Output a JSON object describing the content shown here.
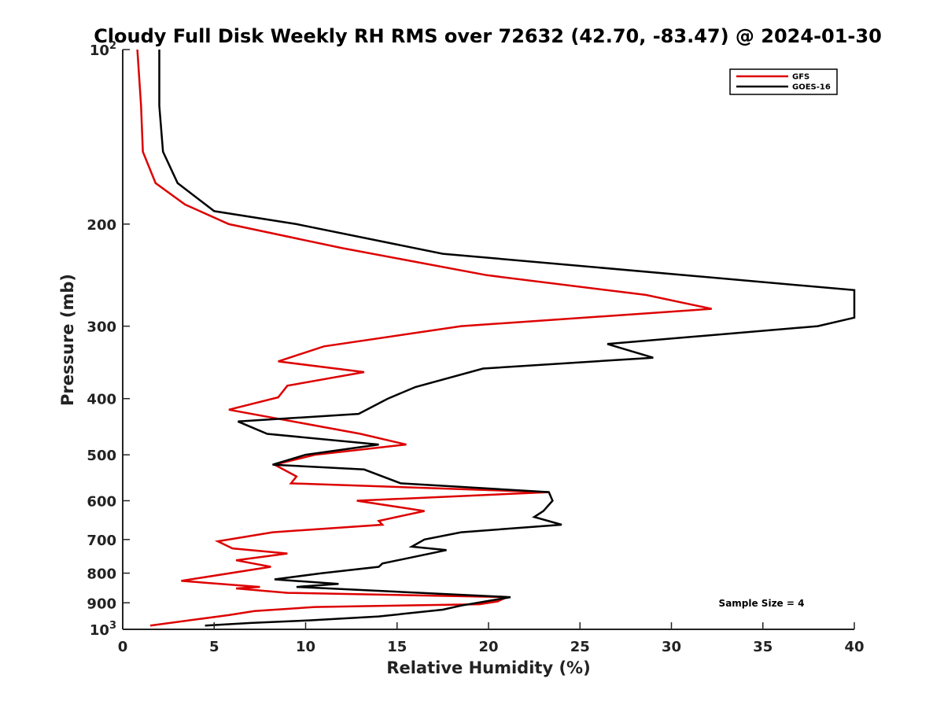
{
  "chart_data": {
    "type": "line",
    "title": "Cloudy Full Disk Weekly RH RMS over 72632 (42.70, -83.47) @ 2024-01-30",
    "xlabel": "Relative Humidity (%)",
    "ylabel": "Pressure (mb)",
    "xlim": [
      0,
      40
    ],
    "ylim": [
      1000,
      100
    ],
    "y_scale": "log",
    "x_ticks": [
      0,
      5,
      10,
      15,
      20,
      25,
      30,
      35,
      40
    ],
    "y_ticks": [
      {
        "value": 100,
        "base": "10",
        "exp": "2"
      },
      {
        "value": 200,
        "label": "200"
      },
      {
        "value": 300,
        "label": "300"
      },
      {
        "value": 400,
        "label": "400"
      },
      {
        "value": 500,
        "label": "500"
      },
      {
        "value": 600,
        "label": "600"
      },
      {
        "value": 700,
        "label": "700"
      },
      {
        "value": 800,
        "label": "800"
      },
      {
        "value": 900,
        "label": "900"
      },
      {
        "value": 1000,
        "base": "10",
        "exp": "3"
      }
    ],
    "grid": false,
    "legend_position": "top-right",
    "annotation": "Sample Size = 4",
    "series": [
      {
        "name": "GFS",
        "color": "#dd0000",
        "points": [
          [
            0.8,
            100
          ],
          [
            1.0,
            125
          ],
          [
            1.1,
            150
          ],
          [
            1.8,
            170
          ],
          [
            3.4,
            185
          ],
          [
            5.8,
            200
          ],
          [
            12.0,
            220
          ],
          [
            19.9,
            245
          ],
          [
            28.6,
            265
          ],
          [
            32.2,
            280
          ],
          [
            18.5,
            300
          ],
          [
            11.0,
            325
          ],
          [
            8.5,
            345
          ],
          [
            13.2,
            360
          ],
          [
            9.0,
            380
          ],
          [
            8.5,
            398
          ],
          [
            5.8,
            418
          ],
          [
            13.0,
            460
          ],
          [
            15.5,
            480
          ],
          [
            10.5,
            500
          ],
          [
            8.3,
            520
          ],
          [
            9.5,
            545
          ],
          [
            9.2,
            560
          ],
          [
            23.3,
            580
          ],
          [
            12.8,
            600
          ],
          [
            16.5,
            625
          ],
          [
            14.0,
            650
          ],
          [
            14.2,
            660
          ],
          [
            8.2,
            680
          ],
          [
            5.2,
            705
          ],
          [
            6.0,
            725
          ],
          [
            9.0,
            740
          ],
          [
            6.2,
            760
          ],
          [
            8.1,
            780
          ],
          [
            3.2,
            825
          ],
          [
            7.5,
            845
          ],
          [
            6.2,
            850
          ],
          [
            9.0,
            865
          ],
          [
            21.0,
            880
          ],
          [
            20.5,
            895
          ],
          [
            19.5,
            905
          ],
          [
            10.5,
            915
          ],
          [
            7.2,
            930
          ],
          [
            5.8,
            945
          ],
          [
            1.5,
            985
          ]
        ]
      },
      {
        "name": "GOES-16",
        "color": "#000000",
        "points": [
          [
            2.0,
            100
          ],
          [
            2.0,
            125
          ],
          [
            2.2,
            150
          ],
          [
            3.0,
            170
          ],
          [
            5.0,
            190
          ],
          [
            9.5,
            200
          ],
          [
            17.5,
            225
          ],
          [
            40.0,
            260
          ],
          [
            40.0,
            290
          ],
          [
            38.0,
            300
          ],
          [
            26.5,
            322
          ],
          [
            29.0,
            340
          ],
          [
            19.7,
            355
          ],
          [
            16.0,
            382
          ],
          [
            14.5,
            400
          ],
          [
            12.9,
            425
          ],
          [
            6.3,
            438
          ],
          [
            7.9,
            460
          ],
          [
            14.0,
            480
          ],
          [
            10.0,
            500
          ],
          [
            8.2,
            520
          ],
          [
            13.2,
            530
          ],
          [
            15.2,
            560
          ],
          [
            23.3,
            580
          ],
          [
            23.5,
            600
          ],
          [
            23.0,
            625
          ],
          [
            22.5,
            640
          ],
          [
            24.0,
            660
          ],
          [
            18.5,
            680
          ],
          [
            16.5,
            700
          ],
          [
            15.8,
            720
          ],
          [
            17.7,
            730
          ],
          [
            14.2,
            770
          ],
          [
            14.0,
            780
          ],
          [
            10.9,
            800
          ],
          [
            8.3,
            820
          ],
          [
            11.8,
            835
          ],
          [
            9.5,
            845
          ],
          [
            21.2,
            880
          ],
          [
            18.5,
            910
          ],
          [
            17.5,
            925
          ],
          [
            14.0,
            950
          ],
          [
            10.2,
            965
          ],
          [
            7.0,
            975
          ],
          [
            4.5,
            985
          ]
        ]
      }
    ]
  }
}
